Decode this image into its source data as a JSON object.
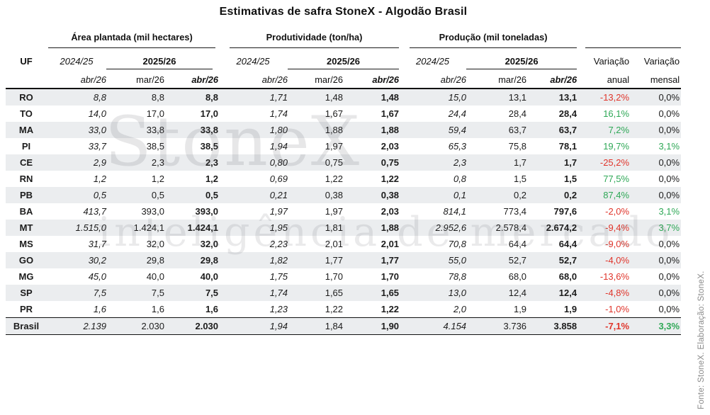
{
  "title": "Estimativas de safra StoneX - Algodão Brasil",
  "colors": {
    "negative": "#e0352b",
    "positive": "#2fa857",
    "stripe": "#ebedef",
    "rule": "#111111"
  },
  "watermark": {
    "line1": "StoneX",
    "line2": "inteligência de mercado"
  },
  "source_note": "Fonte: StoneX.  Elaboração: StoneX.",
  "chart_data": {
    "type": "table",
    "title": "Estimativas de safra StoneX - Algodão Brasil",
    "groups": [
      "Área plantada (mil hectares)",
      "Produtividade (ton/ha)",
      "Produção (mil toneladas)"
    ],
    "header": {
      "uf": "UF",
      "prev_season": "2024/25",
      "cur_season": "2025/26",
      "prev_sub": "abr/26",
      "cur_sub1": "mar/26",
      "cur_sub2": "abr/26",
      "var_annual_title": "Variação",
      "var_annual_sub": "anual",
      "var_monthly_title": "Variação",
      "var_monthly_sub": "mensal"
    },
    "rows": [
      {
        "uf": "RO",
        "area": [
          "8,8",
          "8,8",
          "8,8"
        ],
        "yield": [
          "1,71",
          "1,48",
          "1,48"
        ],
        "prod": [
          "15,0",
          "13,1",
          "13,1"
        ],
        "var_anual": "-13,2%",
        "var_mensal": "0,0%"
      },
      {
        "uf": "TO",
        "area": [
          "14,0",
          "17,0",
          "17,0"
        ],
        "yield": [
          "1,74",
          "1,67",
          "1,67"
        ],
        "prod": [
          "24,4",
          "28,4",
          "28,4"
        ],
        "var_anual": "16,1%",
        "var_mensal": "0,0%"
      },
      {
        "uf": "MA",
        "area": [
          "33,0",
          "33,8",
          "33,8"
        ],
        "yield": [
          "1,80",
          "1,88",
          "1,88"
        ],
        "prod": [
          "59,4",
          "63,7",
          "63,7"
        ],
        "var_anual": "7,2%",
        "var_mensal": "0,0%"
      },
      {
        "uf": "PI",
        "area": [
          "33,7",
          "38,5",
          "38,5"
        ],
        "yield": [
          "1,94",
          "1,97",
          "2,03"
        ],
        "prod": [
          "65,3",
          "75,8",
          "78,1"
        ],
        "var_anual": "19,7%",
        "var_mensal": "3,1%"
      },
      {
        "uf": "CE",
        "area": [
          "2,9",
          "2,3",
          "2,3"
        ],
        "yield": [
          "0,80",
          "0,75",
          "0,75"
        ],
        "prod": [
          "2,3",
          "1,7",
          "1,7"
        ],
        "var_anual": "-25,2%",
        "var_mensal": "0,0%"
      },
      {
        "uf": "RN",
        "area": [
          "1,2",
          "1,2",
          "1,2"
        ],
        "yield": [
          "0,69",
          "1,22",
          "1,22"
        ],
        "prod": [
          "0,8",
          "1,5",
          "1,5"
        ],
        "var_anual": "77,5%",
        "var_mensal": "0,0%"
      },
      {
        "uf": "PB",
        "area": [
          "0,5",
          "0,5",
          "0,5"
        ],
        "yield": [
          "0,21",
          "0,38",
          "0,38"
        ],
        "prod": [
          "0,1",
          "0,2",
          "0,2"
        ],
        "var_anual": "87,4%",
        "var_mensal": "0,0%"
      },
      {
        "uf": "BA",
        "area": [
          "413,7",
          "393,0",
          "393,0"
        ],
        "yield": [
          "1,97",
          "1,97",
          "2,03"
        ],
        "prod": [
          "814,1",
          "773,4",
          "797,6"
        ],
        "var_anual": "-2,0%",
        "var_mensal": "3,1%"
      },
      {
        "uf": "MT",
        "area": [
          "1.515,0",
          "1.424,1",
          "1.424,1"
        ],
        "yield": [
          "1,95",
          "1,81",
          "1,88"
        ],
        "prod": [
          "2.952,6",
          "2.578,4",
          "2.674,2"
        ],
        "var_anual": "-9,4%",
        "var_mensal": "3,7%"
      },
      {
        "uf": "MS",
        "area": [
          "31,7",
          "32,0",
          "32,0"
        ],
        "yield": [
          "2,23",
          "2,01",
          "2,01"
        ],
        "prod": [
          "70,8",
          "64,4",
          "64,4"
        ],
        "var_anual": "-9,0%",
        "var_mensal": "0,0%"
      },
      {
        "uf": "GO",
        "area": [
          "30,2",
          "29,8",
          "29,8"
        ],
        "yield": [
          "1,82",
          "1,77",
          "1,77"
        ],
        "prod": [
          "55,0",
          "52,7",
          "52,7"
        ],
        "var_anual": "-4,0%",
        "var_mensal": "0,0%"
      },
      {
        "uf": "MG",
        "area": [
          "45,0",
          "40,0",
          "40,0"
        ],
        "yield": [
          "1,75",
          "1,70",
          "1,70"
        ],
        "prod": [
          "78,8",
          "68,0",
          "68,0"
        ],
        "var_anual": "-13,6%",
        "var_mensal": "0,0%"
      },
      {
        "uf": "SP",
        "area": [
          "7,5",
          "7,5",
          "7,5"
        ],
        "yield": [
          "1,74",
          "1,65",
          "1,65"
        ],
        "prod": [
          "13,0",
          "12,4",
          "12,4"
        ],
        "var_anual": "-4,8%",
        "var_mensal": "0,0%"
      },
      {
        "uf": "PR",
        "area": [
          "1,6",
          "1,6",
          "1,6"
        ],
        "yield": [
          "1,23",
          "1,22",
          "1,22"
        ],
        "prod": [
          "2,0",
          "1,9",
          "1,9"
        ],
        "var_anual": "-1,0%",
        "var_mensal": "0,0%"
      }
    ],
    "total": {
      "uf": "Brasil",
      "area": [
        "2.139",
        "2.030",
        "2.030"
      ],
      "yield": [
        "1,94",
        "1,84",
        "1,90"
      ],
      "prod": [
        "4.154",
        "3.736",
        "3.858"
      ],
      "var_anual": "-7,1%",
      "var_mensal": "3,3%"
    }
  }
}
